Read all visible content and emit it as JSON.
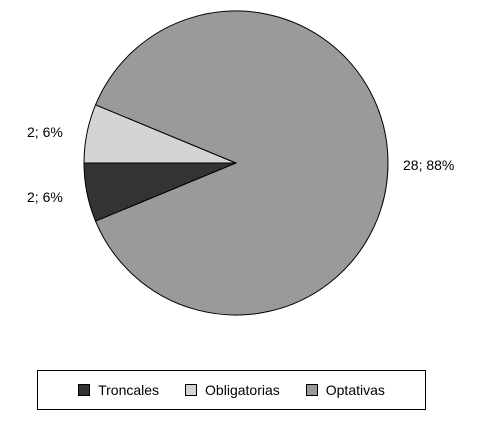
{
  "chart_data": {
    "type": "pie",
    "categories": [
      "Troncales",
      "Obligatorias",
      "Optativas"
    ],
    "values": [
      2,
      2,
      28
    ],
    "percents": [
      6,
      6,
      88
    ],
    "data_labels": [
      "2; 6%",
      "2; 6%",
      "28; 88%"
    ],
    "colors": [
      "#333333",
      "#d4d4d4",
      "#9a9a9a"
    ],
    "legend_position": "bottom"
  }
}
